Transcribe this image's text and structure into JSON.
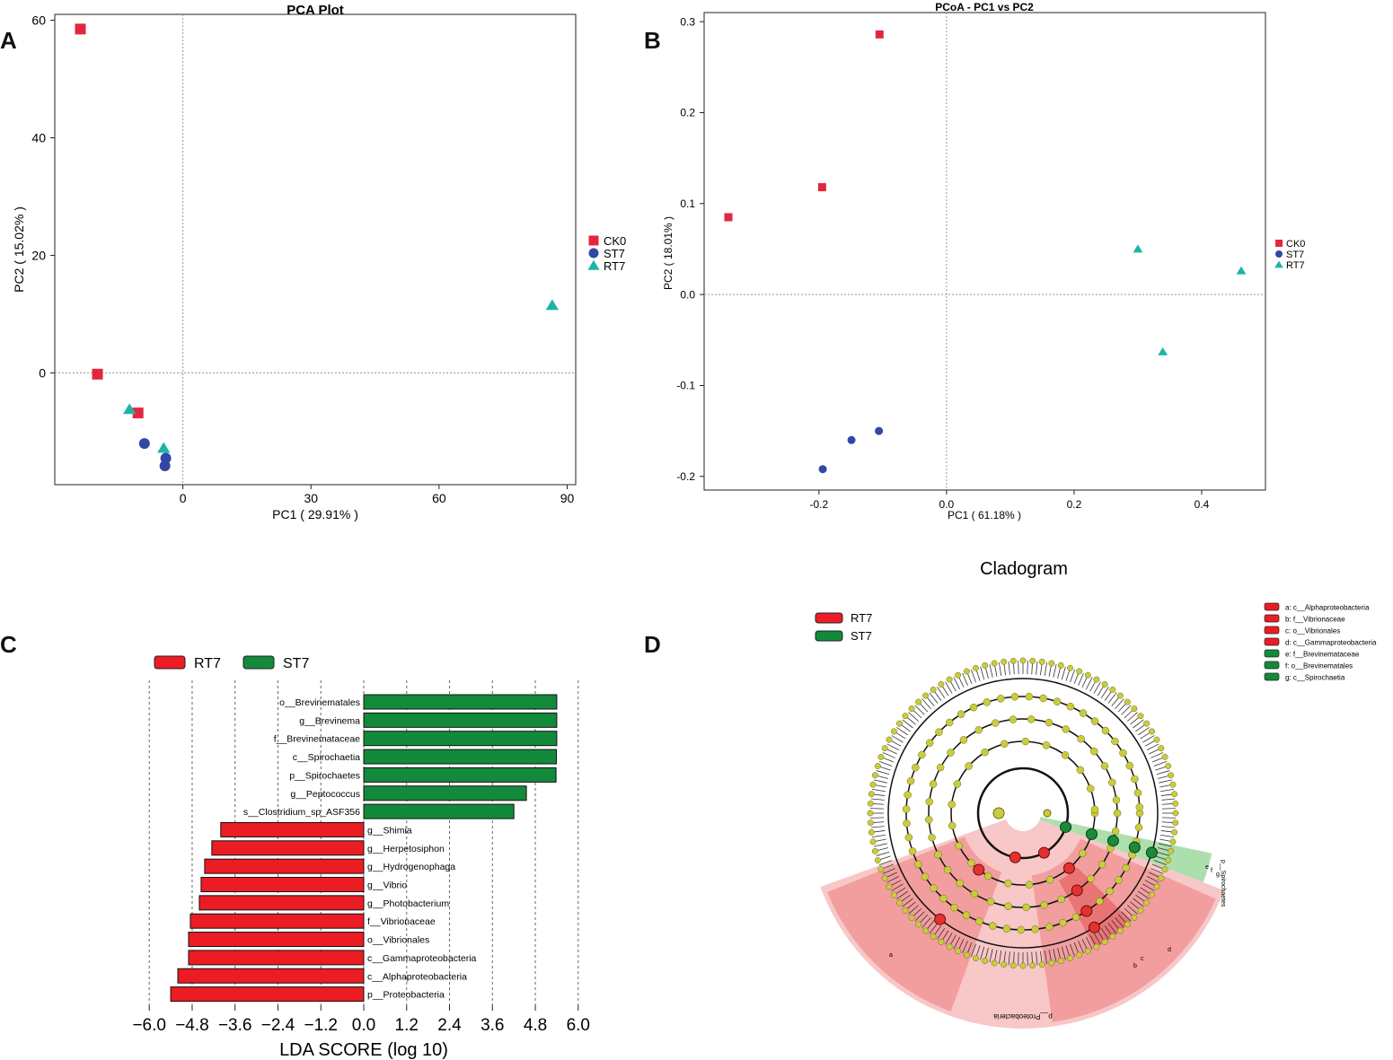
{
  "panel_labels": [
    "A",
    "B",
    "C",
    "D"
  ],
  "colors": {
    "CK0": "#e3263f",
    "ST7": "#3148a6",
    "RT7": "#1fb3a5",
    "lda_rt7": "#ec1c24",
    "lda_st7": "#138a3a",
    "node": "#c9cc3f",
    "node_stroke": "#6b6d12"
  },
  "chart_data": [
    {
      "id": "A",
      "type": "scatter",
      "title": "PCA Plot",
      "xlabel": "PC1 ( 29.91% )",
      "ylabel": "PC2 ( 15.02% )",
      "xlim": [
        -30,
        92
      ],
      "ylim": [
        -19,
        61
      ],
      "xticks": [
        0,
        30,
        60,
        90
      ],
      "yticks": [
        0,
        20,
        40,
        60
      ],
      "legend": [
        "CK0",
        "ST7",
        "RT7"
      ],
      "legend_position": "right",
      "series": [
        {
          "name": "CK0",
          "marker": "square",
          "points": [
            [
              -24,
              58.5
            ],
            [
              -20,
              -0.2
            ],
            [
              -10.5,
              -6.8
            ]
          ]
        },
        {
          "name": "ST7",
          "marker": "circle",
          "points": [
            [
              -9,
              -12
            ],
            [
              -4,
              -14.5
            ],
            [
              -4.2,
              -15.8
            ]
          ]
        },
        {
          "name": "RT7",
          "marker": "triangle",
          "points": [
            [
              86.5,
              11.5
            ],
            [
              -12.5,
              -6.2
            ],
            [
              -4.5,
              -12.8
            ]
          ]
        }
      ]
    },
    {
      "id": "B",
      "type": "scatter",
      "title": "PCoA - PC1 vs PC2",
      "xlabel": "PC1 ( 61.18% )",
      "ylabel": "PC2 ( 18.01% )",
      "xlim": [
        -0.38,
        0.5
      ],
      "ylim": [
        -0.215,
        0.31
      ],
      "xticks": [
        -0.2,
        0.0,
        0.2,
        0.4
      ],
      "xtick_labels": [
        "-0.2",
        "0.0",
        "0.2",
        "0.4"
      ],
      "yticks": [
        -0.2,
        -0.1,
        0.0,
        0.1,
        0.2,
        0.3
      ],
      "ytick_labels": [
        "-0.2",
        "-0.1",
        "0.0",
        "0.1",
        "0.2",
        "0.3"
      ],
      "legend": [
        "CK0",
        "ST7",
        "RT7"
      ],
      "legend_position": "right",
      "series": [
        {
          "name": "CK0",
          "marker": "square",
          "points": [
            [
              -0.105,
              0.286
            ],
            [
              -0.195,
              0.118
            ],
            [
              -0.342,
              0.085
            ]
          ]
        },
        {
          "name": "ST7",
          "marker": "circle",
          "points": [
            [
              -0.106,
              -0.15
            ],
            [
              -0.149,
              -0.16
            ],
            [
              -0.194,
              -0.192
            ]
          ]
        },
        {
          "name": "RT7",
          "marker": "triangle",
          "points": [
            [
              0.3,
              0.05
            ],
            [
              0.462,
              0.026
            ],
            [
              0.339,
              -0.063
            ]
          ]
        }
      ]
    },
    {
      "id": "C",
      "type": "bar",
      "orientation": "horizontal",
      "xlabel": "LDA SCORE (log 10)",
      "xlim": [
        -6.0,
        6.0
      ],
      "xticks": [
        -6.0,
        -4.8,
        -3.6,
        -2.4,
        -1.2,
        0.0,
        1.2,
        2.4,
        3.6,
        4.8,
        6.0
      ],
      "xtick_labels": [
        "−6.0",
        "−4.8",
        "−3.6",
        "−2.4",
        "−1.2",
        "0.0",
        "1.2",
        "2.4",
        "3.6",
        "4.8",
        "6.0"
      ],
      "legend": [
        "RT7",
        "ST7"
      ],
      "legend_position": "top",
      "bars": [
        {
          "label": "o__Brevinematales",
          "value": 5.4,
          "group": "ST7"
        },
        {
          "label": "g__Brevinema",
          "value": 5.4,
          "group": "ST7"
        },
        {
          "label": "f__Brevinemataceae",
          "value": 5.4,
          "group": "ST7"
        },
        {
          "label": "c__Spirochaetia",
          "value": 5.39,
          "group": "ST7"
        },
        {
          "label": "p__Spirochaetes",
          "value": 5.38,
          "group": "ST7"
        },
        {
          "label": "g__Peptococcus",
          "value": 4.55,
          "group": "ST7"
        },
        {
          "label": "s__Clostridium_sp_ASF356",
          "value": 4.2,
          "group": "ST7"
        },
        {
          "label": "g__Shimia",
          "value": -4.0,
          "group": "RT7"
        },
        {
          "label": "g__Herpetosiphon",
          "value": -4.25,
          "group": "RT7"
        },
        {
          "label": "g__Hydrogenophaga",
          "value": -4.45,
          "group": "RT7"
        },
        {
          "label": "g__Vibrio",
          "value": -4.55,
          "group": "RT7"
        },
        {
          "label": "g__Photobacterium",
          "value": -4.6,
          "group": "RT7"
        },
        {
          "label": "f__Vibrionaceae",
          "value": -4.85,
          "group": "RT7"
        },
        {
          "label": "o__Vibrionales",
          "value": -4.9,
          "group": "RT7"
        },
        {
          "label": "c__Gammaproteobacteria",
          "value": -4.9,
          "group": "RT7"
        },
        {
          "label": "c__Alphaproteobacteria",
          "value": -5.2,
          "group": "RT7"
        },
        {
          "label": "p__Proteobacteria",
          "value": -5.4,
          "group": "RT7"
        }
      ]
    },
    {
      "id": "D",
      "type": "other",
      "title": "Cladogram",
      "legend": [
        "RT7",
        "ST7"
      ],
      "legend_position": "top-left",
      "key": [
        {
          "text": "a: c__Alphaproteobacteria",
          "group": "RT7"
        },
        {
          "text": "b: f__Vibrionaceae",
          "group": "RT7"
        },
        {
          "text": "c: o__Vibrionales",
          "group": "RT7"
        },
        {
          "text": "d: c__Gammaproteobacteria",
          "group": "RT7"
        },
        {
          "text": "e: f__Brevinemataceae",
          "group": "ST7"
        },
        {
          "text": "f: o__Brevinematales",
          "group": "ST7"
        },
        {
          "text": "g: c__Spirochaetia",
          "group": "ST7"
        }
      ],
      "clade_labels": [
        "p__Proteobacteria",
        "p__Spirochaetes",
        "a",
        "b",
        "c",
        "d",
        "e",
        "f",
        "g"
      ]
    }
  ]
}
